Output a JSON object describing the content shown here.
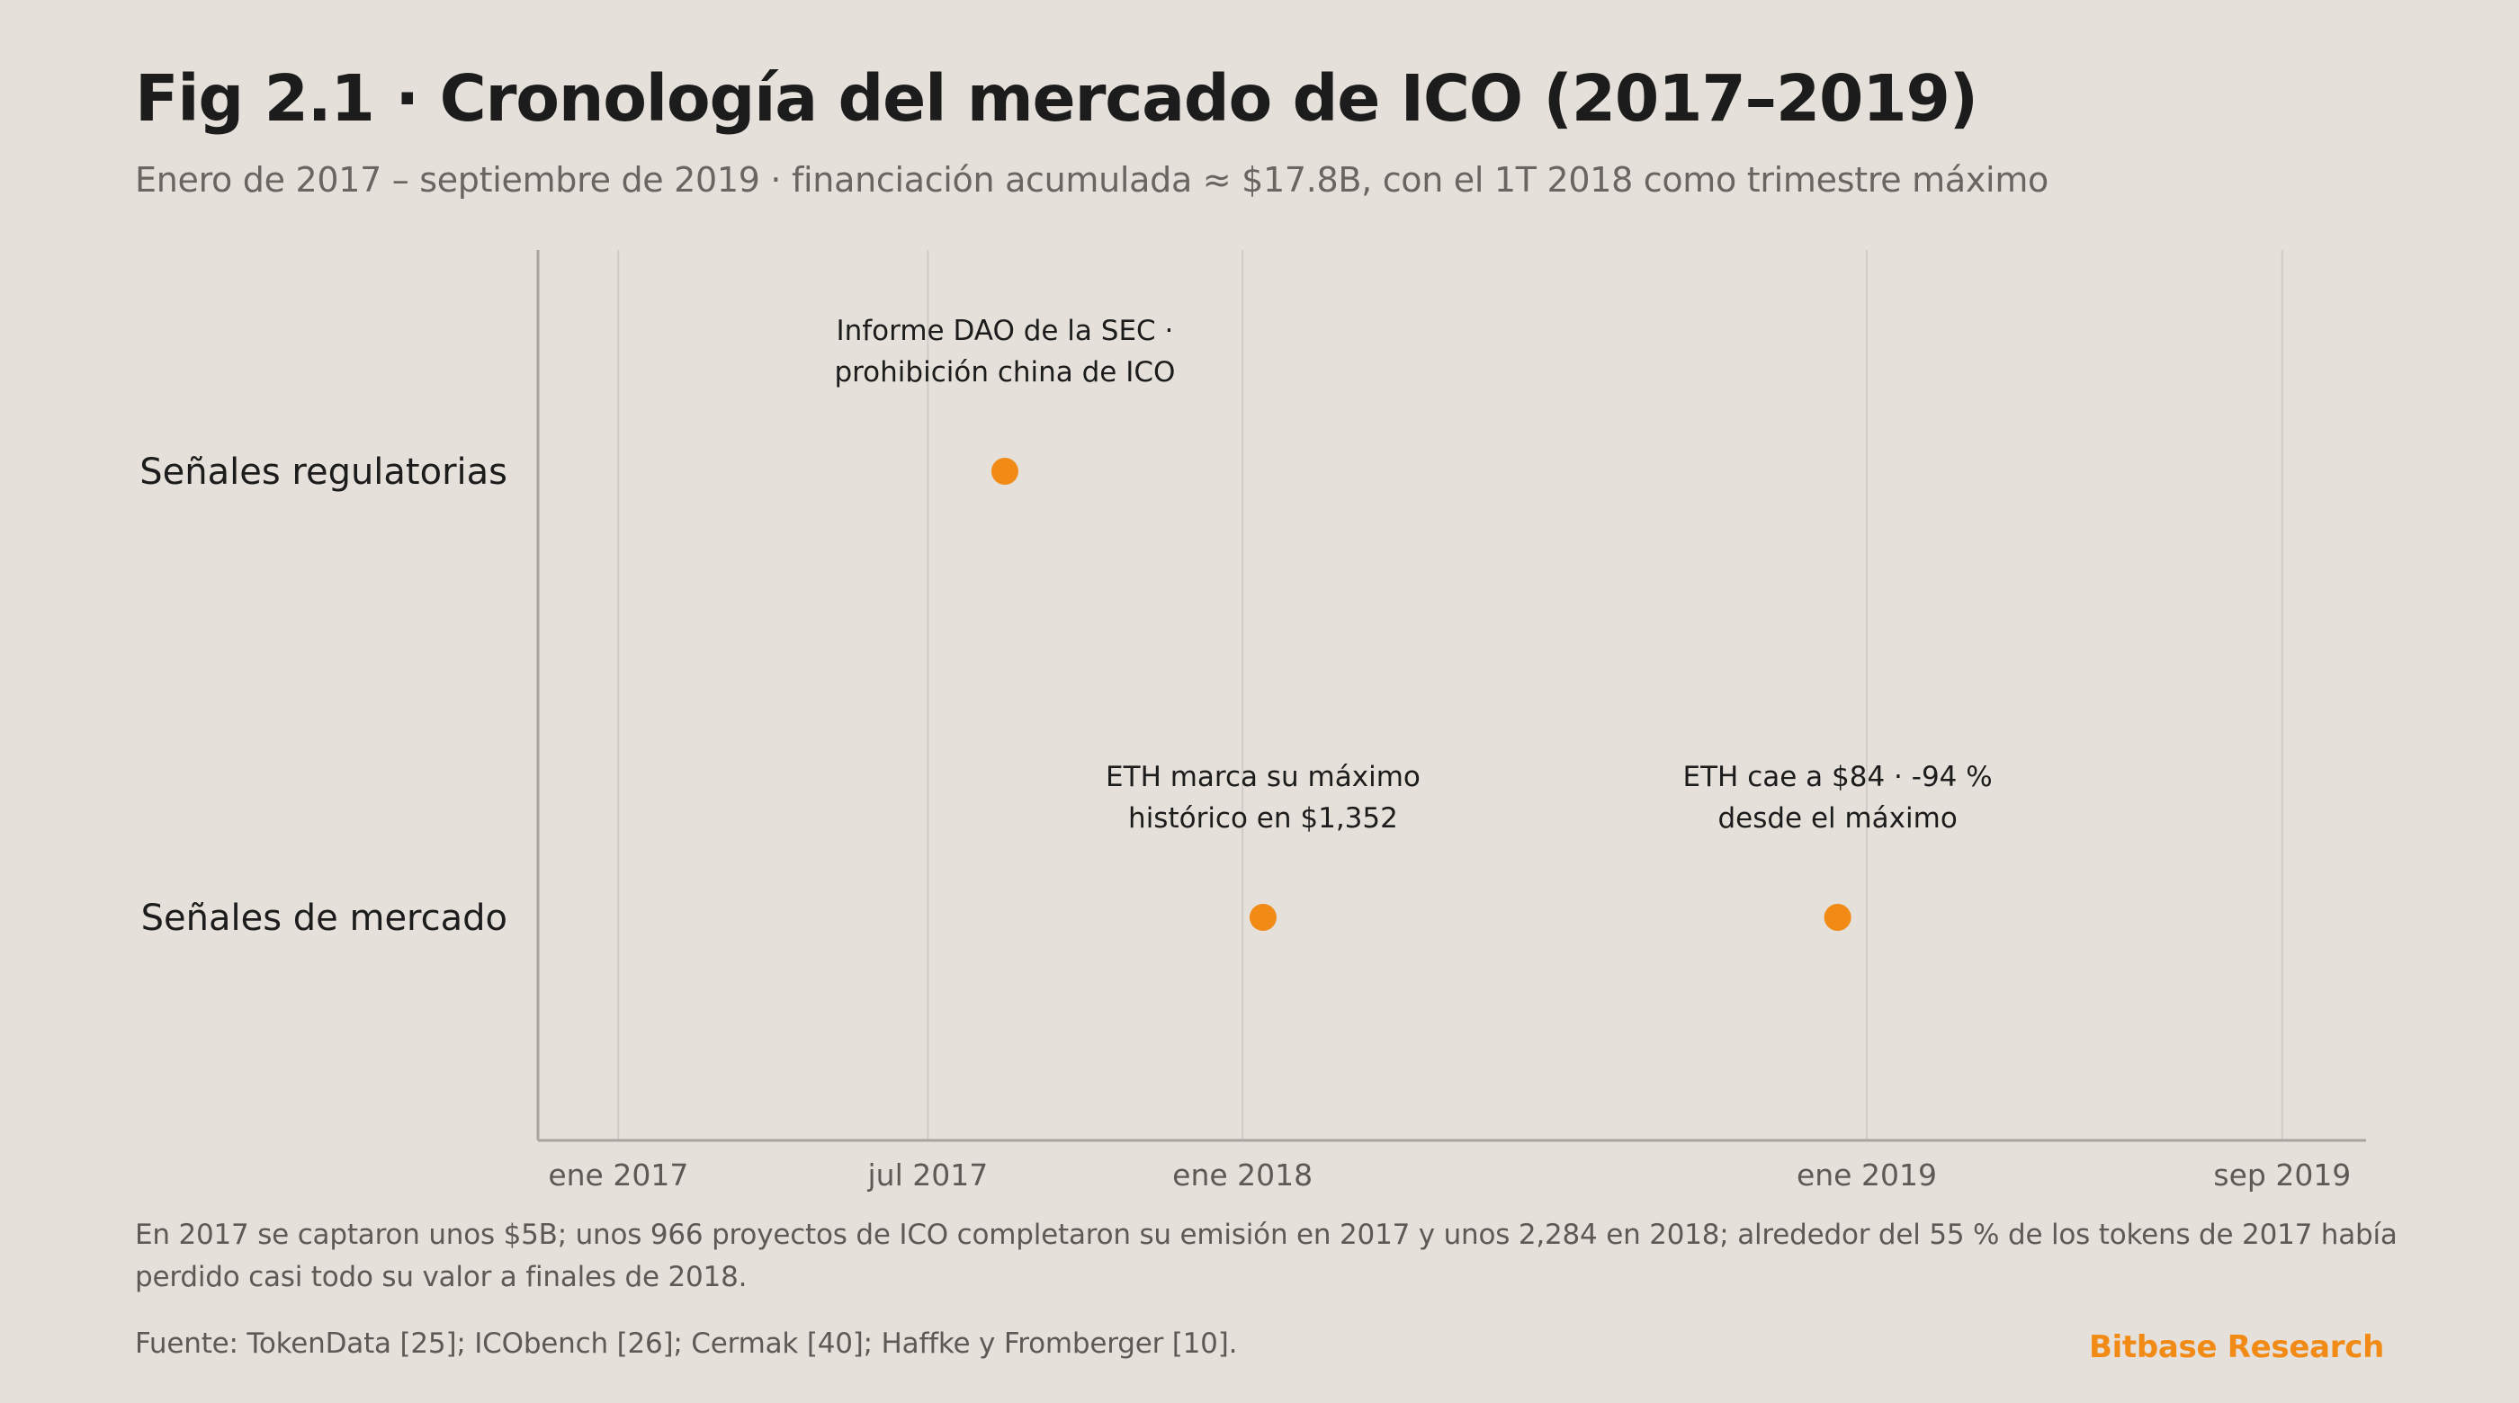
{
  "header": {
    "title": "Fig 2.1 · Cronología del mercado de ICO (2017–2019)",
    "subtitle": "Enero de 2017 – septiembre de 2019 · financiación acumulada ≈ $17.8B, con el 1T 2018 como trimestre máximo"
  },
  "chart_data": {
    "type": "scatter",
    "x_axis": {
      "kind": "date",
      "range": [
        "2016-11-15",
        "2019-10-20"
      ],
      "ticks": [
        {
          "date": "2017-01-01",
          "label": "ene 2017"
        },
        {
          "date": "2017-07-01",
          "label": "jul 2017"
        },
        {
          "date": "2018-01-01",
          "label": "ene 2018"
        },
        {
          "date": "2019-01-01",
          "label": "ene 2019"
        },
        {
          "date": "2019-09-01",
          "label": "sep 2019"
        }
      ],
      "grid": true
    },
    "y_axis": {
      "kind": "category",
      "categories": [
        "Señales regulatorias",
        "Señales de mercado"
      ]
    },
    "points": [
      {
        "date": "2017-08-15",
        "category": "Señales regulatorias",
        "label_lines": [
          "Informe DAO de la SEC ·",
          "prohibición china de ICO"
        ]
      },
      {
        "date": "2018-01-13",
        "category": "Señales de mercado",
        "label_lines": [
          "ETH marca su máximo",
          "histórico en $1,352"
        ]
      },
      {
        "date": "2018-12-15",
        "category": "Señales de mercado",
        "label_lines": [
          "ETH cae a $84 · -94 %",
          "desde el máximo"
        ]
      }
    ],
    "marker_color": "#f28a16",
    "grid_color": "#d0cbc5",
    "axis_color": "#a9a49f"
  },
  "footer": {
    "note": "En 2017 se captaron unos $5B; unos 966 proyectos de ICO completaron su emisión en 2017 y unos 2,284 en 2018; alrededor del 55 % de los tokens de 2017 había perdido casi todo su valor a finales de 2018.",
    "source": "Fuente: TokenData [25]; ICObench [26]; Cermak [40]; Haffke y Fromberger [10].",
    "brand": "Bitbase Research"
  }
}
